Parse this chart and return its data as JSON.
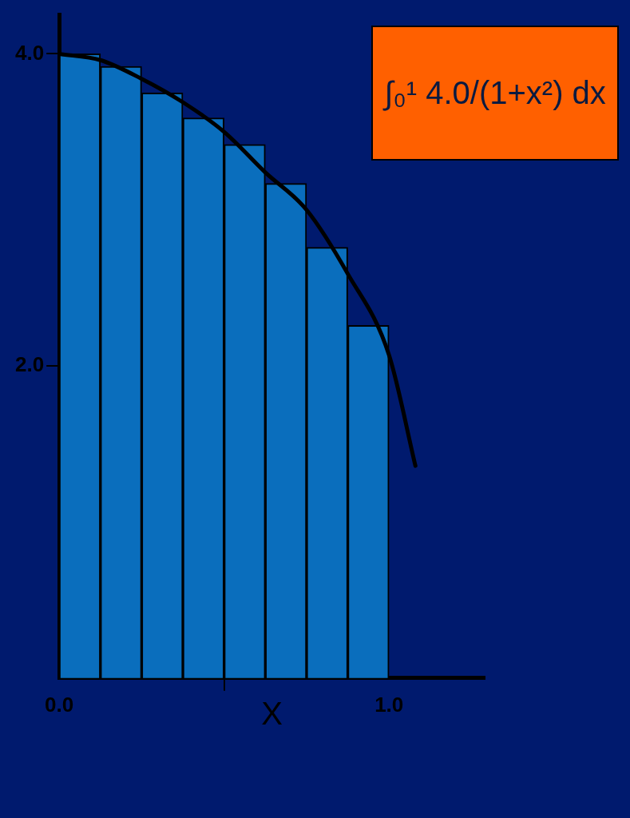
{
  "chart_data": {
    "type": "bar",
    "xlabel": "X",
    "x": [
      0.0625,
      0.1875,
      0.3125,
      0.4375,
      0.5625,
      0.6875,
      0.8125,
      0.9375
    ],
    "series": [
      {
        "color": "#0a6ebd",
        "values": [
          4.0,
          3.92,
          3.75,
          3.59,
          3.42,
          3.17,
          2.76,
          2.26
        ]
      },
      {
        "type": "line",
        "color": "#000000",
        "x": [
          0,
          0.125,
          0.25,
          0.375,
          0.5,
          0.625,
          0.75,
          0.875,
          1.0,
          1.08
        ],
        "values": [
          4.0,
          3.96,
          3.84,
          3.69,
          3.5,
          3.24,
          3.0,
          2.59,
          2.07,
          1.36
        ]
      }
    ],
    "xlim": [
      0,
      1.29
    ],
    "xticks": [
      {
        "value": 0,
        "label": "0.0"
      },
      {
        "value": 1,
        "label": "1.0"
      }
    ],
    "ylim": [
      0,
      4.25
    ],
    "yticks": [
      {
        "value": 2,
        "label": "2.0"
      },
      {
        "value": 4,
        "label": "4.0"
      }
    ],
    "grid": false,
    "marker": "none",
    "annotations": [
      "∫₀¹ 4.0/(1+x²) dx"
    ]
  }
}
